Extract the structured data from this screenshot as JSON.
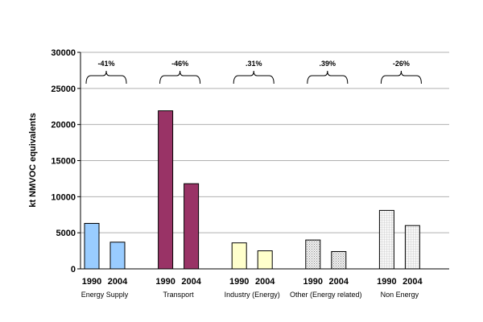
{
  "chart_data": {
    "type": "bar",
    "title": "",
    "xlabel": "",
    "ylabel": "kt NMVOC equivalents",
    "ylim": [
      0,
      30000
    ],
    "yticks": [
      0,
      5000,
      10000,
      15000,
      20000,
      25000,
      30000
    ],
    "ytick_labels": [
      "0",
      "5000",
      "10000",
      "15000",
      "20000",
      "25000",
      "30000"
    ],
    "grid": true,
    "legend": "none",
    "groups": [
      {
        "name": "Energy Supply",
        "change": "-41%",
        "color": "#99ccff",
        "pattern": "solid",
        "bars": [
          {
            "year": "1990",
            "value": 6300
          },
          {
            "year": "2004",
            "value": 3700
          }
        ]
      },
      {
        "name": "Transport",
        "change": "-46%",
        "color": "#993366",
        "pattern": "solid",
        "bars": [
          {
            "year": "1990",
            "value": 21900
          },
          {
            "year": "2004",
            "value": 11800
          }
        ]
      },
      {
        "name": "Industry (Energy)",
        "change": ".31%",
        "color": "#ffffcc",
        "pattern": "solid",
        "bars": [
          {
            "year": "1990",
            "value": 3600
          },
          {
            "year": "2004",
            "value": 2500
          }
        ]
      },
      {
        "name": "Other (Energy related)",
        "change": ".39%",
        "color": "#e8e8e8",
        "pattern": "dots",
        "bars": [
          {
            "year": "1990",
            "value": 4000
          },
          {
            "year": "2004",
            "value": 2400
          }
        ]
      },
      {
        "name": "Non Energy",
        "change": "-26%",
        "color": "#f0f0f0",
        "pattern": "grid",
        "bars": [
          {
            "year": "1990",
            "value": 8100
          },
          {
            "year": "2004",
            "value": 6000
          }
        ]
      }
    ]
  }
}
